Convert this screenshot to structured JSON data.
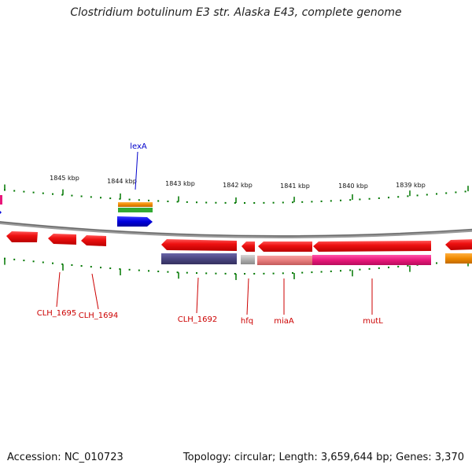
{
  "title": "Clostridium botulinum E3 str. Alaska E43, complete genome",
  "footer": {
    "accession": "Accession: NC_010723",
    "summary": "Topology: circular; Length: 3,659,644 bp; Genes: 3,370"
  },
  "scale_labels": [
    "1845 kbp",
    "1844 kbp",
    "1843 kbp",
    "1842 kbp",
    "1841 kbp",
    "1840 kbp",
    "1839 kbp"
  ],
  "gene_labels": {
    "lexA": "lexA",
    "clh1695": "CLH_1695",
    "clh1694": "CLH_1694",
    "clh1692": "CLH_1692",
    "hfq": "hfq",
    "miaA": "miaA",
    "mutL": "mutL"
  },
  "colors": {
    "gene_red": "#ee1111",
    "lexA_blue": "#0000dd",
    "gene_label_red": "#cc0000",
    "lexA_label_blue": "#0000cc",
    "tick_green": "#007700",
    "backbone_gray": "#888888",
    "purple_feature": "#4a4580",
    "magenta_feature": "#e8187a",
    "salmon_feature": "#e77d7d",
    "orange_feature": "#f08a00",
    "green_feature": "#33aa33",
    "gray_feature": "#b0b0b0"
  }
}
